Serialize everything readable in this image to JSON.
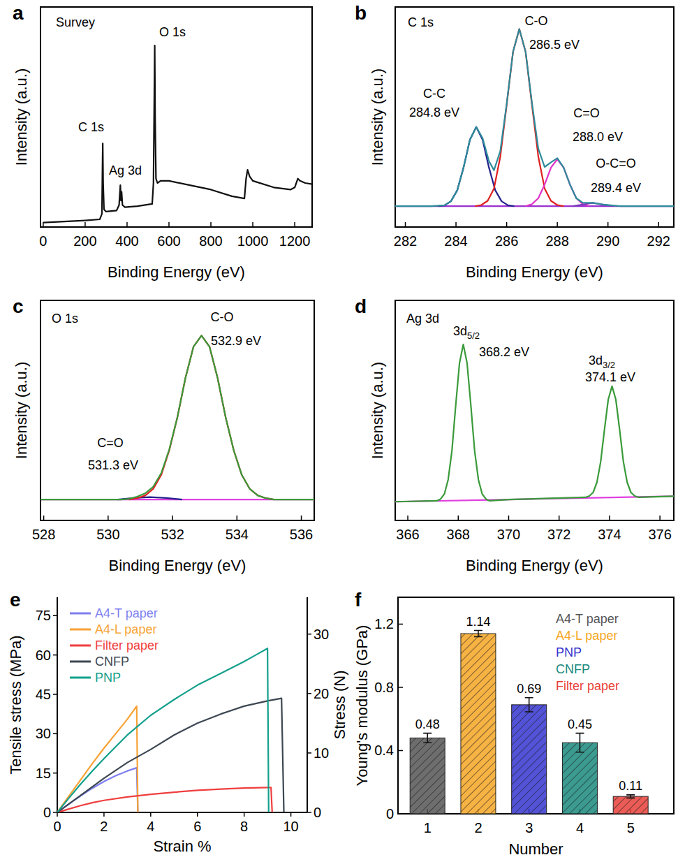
{
  "chart_data": [
    {
      "panel": "a",
      "type": "line",
      "title": "Survey",
      "x_label": "Binding Energy (eV)",
      "y_label": "Intensity (a.u.)",
      "annotations": [
        "O 1s",
        "C 1s",
        "Ag 3d"
      ],
      "xlim": [
        -13,
        1283
      ],
      "xticks": [
        0,
        200,
        400,
        600,
        800,
        1000,
        1200
      ],
      "ylim": [
        0,
        100
      ],
      "tick_labels": "x",
      "series": [
        {
          "color": "#111111",
          "x": [
            0,
            100,
            200,
            270,
            280,
            284,
            286,
            290,
            300,
            350,
            362,
            368,
            371,
            374,
            378,
            390,
            450,
            520,
            526,
            530,
            532,
            534,
            538,
            545,
            560,
            600,
            700,
            800,
            900,
            960,
            968,
            975,
            985,
            1000,
            1100,
            1180,
            1200,
            1215,
            1225,
            1250,
            1283
          ],
          "values": [
            2,
            2.5,
            3,
            3.5,
            6,
            38,
            20,
            8,
            7,
            7.5,
            10,
            19,
            12,
            16,
            10,
            9,
            9.5,
            10.5,
            20,
            60,
            82.5,
            50,
            22,
            20,
            21,
            21,
            19,
            17,
            14,
            13,
            22,
            26,
            23,
            21,
            18,
            17,
            18,
            22,
            21,
            20,
            19.5
          ]
        }
      ]
    },
    {
      "panel": "b",
      "type": "line",
      "title": "C 1s",
      "x_label": "Binding Energy (eV)",
      "y_label": "Intensity (a.u.)",
      "annotations": [
        "C-C",
        "284.8 eV",
        "C-O",
        "286.5 eV",
        "C=O",
        "288.0 eV",
        "O-C=O",
        "289.4 eV"
      ],
      "xlim": [
        281.6,
        292.6
      ],
      "xticks": [
        282,
        284,
        286,
        288,
        290,
        292
      ],
      "ylim": [
        0,
        100
      ],
      "tick_labels": "x",
      "series": [
        {
          "color": "#9b30d0",
          "x": [
            281.6,
            292.6
          ],
          "values": [
            9.5,
            9.5
          ]
        },
        {
          "color": "#23238e",
          "x": [
            283.3,
            283.55,
            283.8,
            284.05,
            284.3,
            284.55,
            284.8,
            285.05,
            285.3,
            285.55,
            285.8,
            286.05,
            286.3
          ],
          "values": [
            9.5,
            9.9,
            11.7,
            16.7,
            27.1,
            39.7,
            45.5,
            39.7,
            27.1,
            16.7,
            11.7,
            9.9,
            9.5
          ]
        },
        {
          "color": "#e02020",
          "x": [
            284.75,
            285,
            285.25,
            285.5,
            285.75,
            286,
            286.25,
            286.5,
            286.75,
            287,
            287.25,
            287.5,
            287.75,
            288,
            288.25
          ],
          "values": [
            9.5,
            10,
            11.9,
            17.5,
            32,
            55.4,
            79.5,
            90,
            79.5,
            55.4,
            32,
            17.5,
            11.9,
            10,
            9.5
          ]
        },
        {
          "color": "#e033c8",
          "x": [
            286.75,
            287,
            287.25,
            287.5,
            287.75,
            288,
            288.25,
            288.5,
            288.75,
            289,
            289.25
          ],
          "values": [
            9.5,
            10.4,
            13.1,
            19.3,
            27,
            30.8,
            27,
            19.3,
            13.1,
            10.4,
            9.5
          ]
        },
        {
          "color": "#7a3fbf",
          "x": [
            288.6,
            289,
            289.4,
            289.8,
            290.2
          ],
          "values": [
            9.5,
            10.2,
            11,
            10.2,
            9.5
          ]
        },
        {
          "color": "#2e8b9a",
          "x": [
            281.6,
            283,
            283.55,
            283.8,
            284.05,
            284.3,
            284.55,
            284.8,
            285.05,
            285.3,
            285.5,
            285.75,
            286,
            286.25,
            286.5,
            286.75,
            287,
            287.25,
            287.5,
            287.75,
            288,
            288.25,
            288.5,
            288.75,
            289,
            289.4,
            289.8,
            290.5,
            292.6
          ],
          "values": [
            9.5,
            9.5,
            9.9,
            11.7,
            16.7,
            27.1,
            39.7,
            45.5,
            40.4,
            30,
            25.8,
            34.6,
            55.9,
            79.5,
            90,
            79.5,
            56.3,
            35.6,
            27.3,
            29.4,
            31.3,
            27,
            19.3,
            13.1,
            11.1,
            11,
            10.2,
            9.5,
            9.5
          ]
        }
      ]
    },
    {
      "panel": "c",
      "type": "line",
      "title": "O 1s",
      "x_label": "Binding Energy (eV)",
      "y_label": "Intensity (a.u.)",
      "annotations": [
        "C-O",
        "532.9 eV",
        "C=O",
        "531.3 eV"
      ],
      "xlim": [
        527.9,
        536.4
      ],
      "xticks": [
        528,
        530,
        532,
        534,
        536
      ],
      "ylim": [
        0,
        100
      ],
      "tick_labels": "x",
      "series": [
        {
          "color": "#e040e0",
          "x": [
            527.9,
            536.4
          ],
          "values": [
            9.5,
            9.5
          ]
        },
        {
          "color": "#23238e",
          "x": [
            530.3,
            530.8,
            531.3,
            531.8,
            532.3
          ],
          "values": [
            9.5,
            10.2,
            10.6,
            10.2,
            9.5
          ]
        },
        {
          "color": "#e02020",
          "x": [
            530.65,
            530.9,
            531.15,
            531.4,
            531.65,
            531.9,
            532.15,
            532.4,
            532.65,
            532.9,
            533.15,
            533.4,
            533.65,
            533.9,
            534.15,
            534.4,
            534.65,
            534.9,
            535.15
          ],
          "values": [
            9.5,
            10.1,
            11.3,
            14.3,
            20.7,
            31.9,
            46.8,
            64.7,
            78.9,
            84,
            78.9,
            64.7,
            46.8,
            31.9,
            20.7,
            14.3,
            11.3,
            10.1,
            9.5
          ]
        },
        {
          "color": "#3a9a3a",
          "x": [
            527.9,
            530.4,
            530.65,
            530.9,
            531.15,
            531.4,
            531.65,
            531.9,
            532.15,
            532.4,
            532.65,
            532.9,
            533.15,
            533.4,
            533.65,
            533.9,
            534.15,
            534.4,
            534.65,
            534.9,
            535.15,
            536.4
          ],
          "values": [
            9.5,
            9.5,
            9.8,
            10.8,
            12.3,
            15.3,
            21.5,
            32.3,
            46.8,
            64.7,
            78.9,
            84,
            78.9,
            64.7,
            46.8,
            31.9,
            20.7,
            14.3,
            11.3,
            10.1,
            9.5,
            9.5
          ]
        }
      ]
    },
    {
      "panel": "d",
      "type": "line",
      "title": "Ag 3d",
      "x_label": "Binding Energy (eV)",
      "y_label": "Intensity (a.u.)",
      "annotations": [
        {
          "text": "3d",
          "sub": "5/2"
        },
        "368.2 eV",
        {
          "text": "3d",
          "sub": "3/2"
        },
        "374.1 eV"
      ],
      "xlim": [
        365.5,
        376.55
      ],
      "xticks": [
        366,
        368,
        370,
        372,
        374,
        376
      ],
      "ylim": [
        0,
        100
      ],
      "tick_labels": "x",
      "series": [
        {
          "color": "#e040e0",
          "x": [
            365.5,
            370,
            376.55
          ],
          "values": [
            8.5,
            9.5,
            11
          ]
        },
        {
          "color": "#3a9a3a",
          "x": [
            365.5,
            367.15,
            367.3,
            367.45,
            367.6,
            367.75,
            367.9,
            368.05,
            368.2,
            368.35,
            368.5,
            368.65,
            368.8,
            368.95,
            369.1,
            369.25,
            370,
            373.05,
            373.2,
            373.35,
            373.5,
            373.65,
            373.8,
            373.95,
            374.1,
            374.25,
            374.4,
            374.55,
            374.7,
            374.85,
            375,
            375.15,
            376.55
          ],
          "values": [
            8.5,
            8.9,
            9.7,
            12,
            18.5,
            31.6,
            52.3,
            71.5,
            80,
            71.5,
            52.3,
            31.6,
            18.5,
            12,
            9.7,
            8.9,
            9.5,
            10.5,
            11.1,
            12.7,
            17.3,
            26.7,
            41.3,
            55,
            61,
            55,
            41.3,
            26.7,
            17.3,
            12.7,
            11.1,
            10.5,
            11
          ]
        }
      ]
    },
    {
      "panel": "e",
      "type": "line",
      "x_label": "Strain %",
      "y_label": "Tensile stress (MPa)",
      "y2_label": "Stress (N)",
      "xlim": [
        0,
        10.7
      ],
      "xticks": [
        0,
        2,
        4,
        6,
        8,
        10
      ],
      "ylim": [
        0,
        82
      ],
      "yticks": [
        0,
        15,
        30,
        45,
        60,
        75
      ],
      "y2lim": [
        0,
        36.2
      ],
      "y2ticks": [
        0,
        10,
        20,
        30
      ],
      "legend": "top-left",
      "series": [
        {
          "name": "A4-T paper",
          "color": "#7f7ff0",
          "x": [
            0,
            0.5,
            1,
            1.5,
            2,
            2.5,
            3,
            3.4,
            3.45
          ],
          "values": [
            0,
            3.2,
            6.3,
            9.2,
            11.8,
            14,
            15.8,
            17,
            0
          ]
        },
        {
          "name": "A4-L paper",
          "color": "#f7a235",
          "x": [
            0,
            0.5,
            1,
            1.5,
            2,
            2.5,
            3,
            3.4,
            3.45
          ],
          "values": [
            0,
            6.2,
            12.4,
            18.6,
            24.5,
            30,
            35.5,
            40.5,
            0
          ]
        },
        {
          "name": "Filter paper",
          "color": "#ef3e3e",
          "x": [
            0,
            0.5,
            1,
            1.5,
            2,
            3,
            4,
            5,
            6,
            7,
            8,
            9,
            9.15,
            9.2
          ],
          "values": [
            0,
            1.3,
            2.6,
            3.7,
            4.6,
            5.9,
            6.9,
            7.7,
            8.4,
            8.9,
            9.3,
            9.5,
            9.5,
            0
          ]
        },
        {
          "name": "CNFP",
          "color": "#3d4752",
          "x": [
            0,
            1,
            2,
            3,
            4,
            5,
            6,
            7,
            8,
            9,
            9.6,
            9.7
          ],
          "values": [
            0,
            6.5,
            13,
            19,
            24,
            29.5,
            34,
            37.5,
            40.5,
            42.5,
            43.5,
            0
          ]
        },
        {
          "name": "PNP",
          "color": "#14a08c",
          "x": [
            0,
            0.5,
            1,
            1.5,
            2,
            2.5,
            3,
            4,
            5,
            6,
            7,
            8,
            8.5,
            9,
            9.05
          ],
          "values": [
            0,
            5.5,
            10.8,
            15.8,
            20.5,
            25,
            29.5,
            37,
            43,
            48.5,
            53,
            57.5,
            60,
            62.5,
            0
          ]
        }
      ]
    },
    {
      "panel": "f",
      "type": "bar",
      "x_label": "Number",
      "y_label": "Young's modulus (GPa)",
      "categories": [
        "1",
        "2",
        "3",
        "4",
        "5"
      ],
      "ylim": [
        0,
        1.37
      ],
      "yticks": [
        0,
        0.4,
        0.8,
        1.2
      ],
      "data_labels": true,
      "legend": "top-right",
      "series": [
        {
          "name": "A4-T paper",
          "color": "#555555",
          "values": [
            0.48,
            null,
            null,
            null,
            null
          ],
          "errors": [
            0.03,
            null,
            null,
            null,
            null
          ]
        },
        {
          "name": "A4-L paper",
          "color": "#f5a623",
          "values": [
            null,
            1.14,
            null,
            null,
            null
          ],
          "errors": [
            null,
            0.02,
            null,
            null,
            null
          ]
        },
        {
          "name": "PNP",
          "color": "#3535d0",
          "values": [
            null,
            null,
            0.69,
            null,
            null
          ],
          "errors": [
            null,
            null,
            0.045,
            null,
            null
          ]
        },
        {
          "name": "CNFP",
          "color": "#1a8a7e",
          "values": [
            null,
            null,
            null,
            0.45,
            null
          ],
          "errors": [
            null,
            null,
            null,
            0.06,
            null
          ]
        },
        {
          "name": "Filter paper",
          "color": "#e8403a",
          "values": [
            null,
            null,
            null,
            null,
            0.11
          ],
          "errors": [
            null,
            null,
            null,
            null,
            0.01
          ]
        }
      ]
    }
  ]
}
